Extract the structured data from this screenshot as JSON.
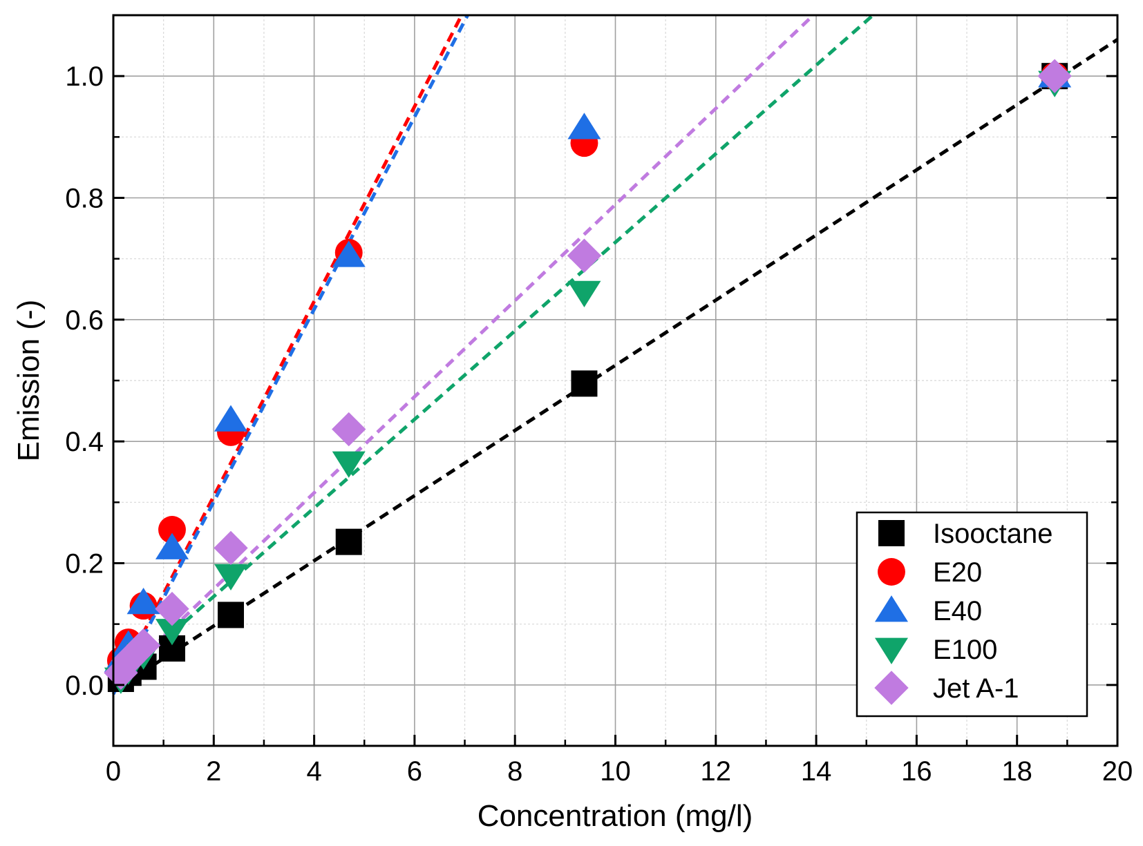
{
  "chart_data": {
    "type": "scatter",
    "xlabel": "Concentration (mg/l)",
    "ylabel": "Emission (-)",
    "xlim": [
      0,
      20
    ],
    "ylim": [
      -0.1,
      1.1
    ],
    "xticks": [
      0,
      2,
      4,
      6,
      8,
      10,
      12,
      14,
      16,
      18,
      20
    ],
    "xtick_labels": [
      "0",
      "2",
      "4",
      "6",
      "8",
      "10",
      "12",
      "14",
      "16",
      "18",
      "20"
    ],
    "yticks": [
      0.0,
      0.2,
      0.4,
      0.6,
      0.8,
      1.0
    ],
    "ytick_labels": [
      "0.0",
      "0.2",
      "0.4",
      "0.6",
      "0.8",
      "1.0"
    ],
    "grid": true,
    "legend_position": "bottom-right",
    "series": [
      {
        "name": "Isooctane",
        "marker": "square",
        "color": "#000000",
        "x": [
          0.15,
          0.3,
          0.6,
          1.17,
          2.34,
          4.69,
          9.38,
          18.75
        ],
        "y": [
          0.01,
          0.02,
          0.03,
          0.06,
          0.115,
          0.235,
          0.495,
          1.0
        ],
        "fit": {
          "slope": 0.0535,
          "intercept": -0.01
        }
      },
      {
        "name": "E20",
        "marker": "circle",
        "color": "#ff0000",
        "x": [
          0.15,
          0.3,
          0.6,
          1.17,
          2.34,
          4.69,
          9.38,
          18.75
        ],
        "y": [
          0.04,
          0.07,
          0.13,
          0.255,
          0.415,
          0.71,
          0.89,
          1.0
        ],
        "fit": {
          "slope": 0.16,
          "intercept": -0.01
        }
      },
      {
        "name": "E40",
        "marker": "triangle-up",
        "color": "#1f6fe5",
        "x": [
          0.15,
          0.3,
          0.6,
          1.17,
          2.34,
          4.69,
          9.38,
          18.75
        ],
        "y": [
          0.04,
          0.065,
          0.135,
          0.225,
          0.435,
          0.705,
          0.915,
          1.0
        ],
        "fit": {
          "slope": 0.158,
          "intercept": -0.015
        }
      },
      {
        "name": "E100",
        "marker": "triangle-down",
        "color": "#0fa46a",
        "x": [
          0.15,
          0.3,
          0.6,
          1.17,
          2.34,
          4.69,
          9.38,
          18.75
        ],
        "y": [
          0.01,
          0.025,
          0.05,
          0.09,
          0.18,
          0.365,
          0.645,
          0.99
        ],
        "fit": {
          "slope": 0.0727,
          "intercept": 0.0
        }
      },
      {
        "name": "Jet A-1",
        "marker": "diamond",
        "color": "#c07be0",
        "x": [
          0.15,
          0.3,
          0.6,
          1.17,
          2.34,
          4.69,
          9.38,
          18.75
        ],
        "y": [
          0.02,
          0.04,
          0.065,
          0.125,
          0.225,
          0.42,
          0.705,
          1.0
        ],
        "fit": {
          "slope": 0.0789,
          "intercept": 0.0
        }
      }
    ]
  }
}
